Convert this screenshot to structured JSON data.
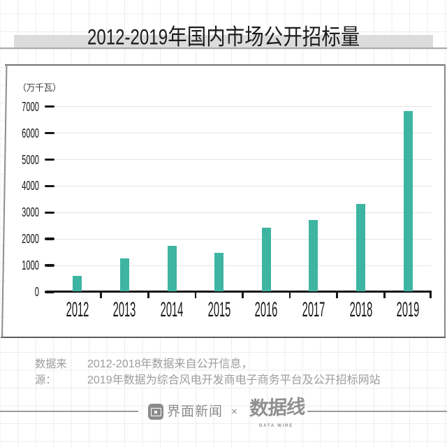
{
  "title": {
    "latin": "2012-2019",
    "cjk": "年国内市场公开招标量",
    "full": "2012-2019年国内市场公开招标量"
  },
  "chart_data": {
    "type": "bar",
    "title": "2012-2019年国内市场公开招标量",
    "unit_label": "（万千瓦）",
    "categories": [
      "2012",
      "2013",
      "2014",
      "2015",
      "2016",
      "2017",
      "2018",
      "2019"
    ],
    "values": [
      590,
      1250,
      1720,
      1450,
      2410,
      2700,
      3320,
      6830
    ],
    "yticks": [
      0,
      1000,
      2000,
      3000,
      4000,
      5000,
      6000,
      7000
    ],
    "ylim": [
      0,
      7400
    ],
    "ylabel": "万千瓦",
    "xlabel": "",
    "grid": true,
    "legend": false,
    "bar_color": "#3db5a2"
  },
  "source": {
    "label": "数据来源：",
    "line1": "2012-2018年数据来自公开信息，",
    "line2": "2019年数据为综合风电开发商电子商务平台及公开招标网站"
  },
  "footer": {
    "brand1": "界面新闻",
    "separator": "×",
    "brand2": "数据线",
    "brand2_sub": "DATA WIRE"
  }
}
